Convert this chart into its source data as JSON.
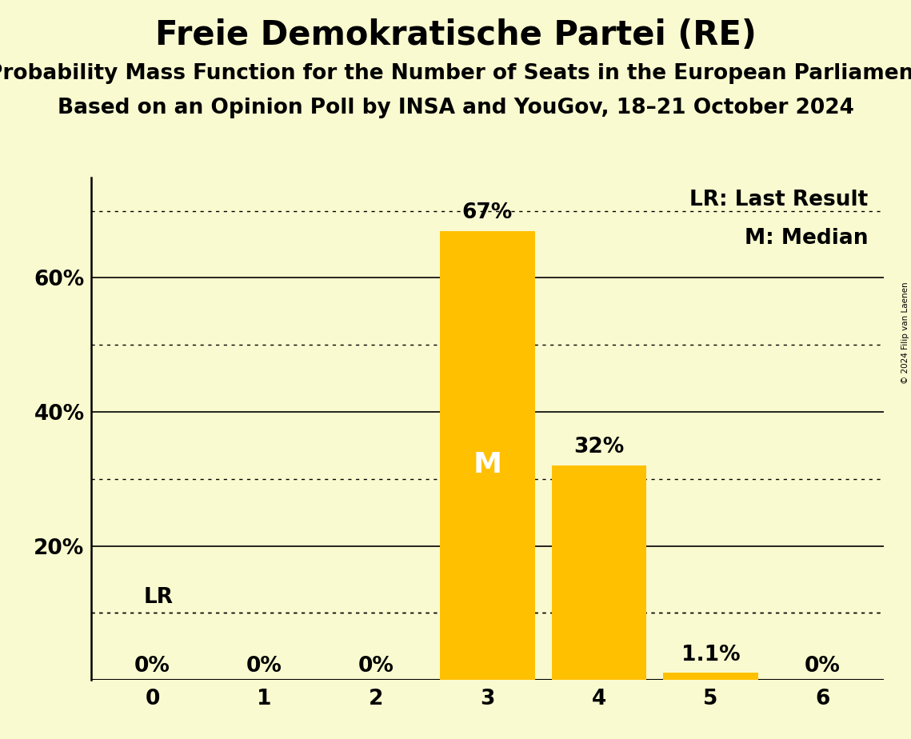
{
  "title": "Freie Demokratische Partei (RE)",
  "subtitle1": "Probability Mass Function for the Number of Seats in the European Parliament",
  "subtitle2": "Based on an Opinion Poll by INSA and YouGov, 18–21 October 2024",
  "copyright": "© 2024 Filip van Laenen",
  "categories": [
    0,
    1,
    2,
    3,
    4,
    5,
    6
  ],
  "values": [
    0.0,
    0.0,
    0.0,
    67.0,
    32.0,
    1.1,
    0.0
  ],
  "bar_color": "#FFC000",
  "background_color": "#FAFAD0",
  "bar_labels": [
    "0%",
    "0%",
    "0%",
    "67%",
    "32%",
    "1.1%",
    "0%"
  ],
  "median_bar": 3,
  "last_result_value": 10.0,
  "legend_text1": "LR: Last Result",
  "legend_text2": "M: Median",
  "ylim": [
    0,
    75
  ],
  "solid_yticks": [
    0,
    20,
    40,
    60
  ],
  "dotted_yticks": [
    10,
    30,
    50,
    70
  ],
  "ytick_labels_positions": [
    20,
    40,
    60
  ],
  "title_fontsize": 30,
  "subtitle_fontsize": 19,
  "label_fontsize": 19,
  "tick_fontsize": 19,
  "bar_label_fontsize": 19,
  "median_label_color": "#FFFFFF",
  "median_label_fontsize": 26,
  "lr_label_fontsize": 19
}
